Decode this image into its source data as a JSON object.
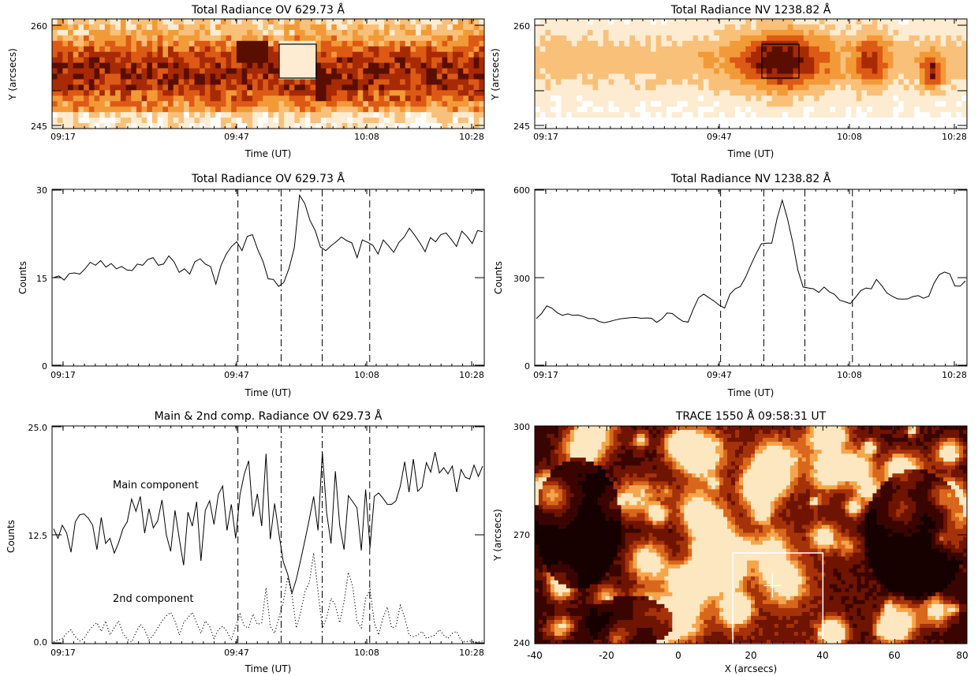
{
  "chart_data": [
    {
      "id": "p1",
      "type": "heatmap",
      "title": "Total Radiance OV 629.73 Å",
      "xlabel": "Time (UT)",
      "ylabel": "Y (arcsecs)",
      "x_ticks": [
        "09:17",
        "09:47",
        "10:08",
        "10:28"
      ],
      "y_ticks": [
        "245",
        "260"
      ],
      "colormap": [
        "#ffffff",
        "#fdecd2",
        "#f9c079",
        "#f29a37",
        "#dd5a15",
        "#a72a05",
        "#5a0e00"
      ],
      "box_label": ""
    },
    {
      "id": "p2",
      "type": "heatmap",
      "title": "Total Radiance NV 1238.82 Å",
      "xlabel": "Time (UT)",
      "ylabel": "Y (arcsecs)",
      "x_ticks": [
        "09:17",
        "09:47",
        "10:08",
        "10:28"
      ],
      "y_ticks": [
        "245",
        "260"
      ],
      "colormap": [
        "#ffffff",
        "#fdecd2",
        "#f9c079",
        "#f29a37",
        "#dd5a15",
        "#a72a05",
        "#5a0e00"
      ]
    },
    {
      "id": "p3",
      "type": "line",
      "title": "Total Radiance OV 629.73 Å",
      "xlabel": "Time (UT)",
      "ylabel": "Counts",
      "x_ticks": [
        "09:17",
        "09:47",
        "10:08",
        "10:28"
      ],
      "y_ticks": [
        "0",
        "15",
        "30"
      ],
      "ylim": [
        0,
        30
      ],
      "x_range": [
        0,
        71
      ],
      "vlines": [
        {
          "x": 0.43,
          "style": "dash"
        },
        {
          "x": 0.53,
          "style": "dashdot"
        },
        {
          "x": 0.625,
          "style": "dashdot"
        },
        {
          "x": 0.735,
          "style": "dash"
        }
      ],
      "series": [
        {
          "values": [
            15.0,
            15.3,
            14.6,
            15.7,
            15.8,
            15.6,
            16.5,
            17.6,
            17.1,
            17.9,
            16.8,
            17.4,
            16.5,
            16.9,
            16.3,
            16.2,
            17.3,
            17.1,
            18.1,
            18.4,
            17.1,
            17.3,
            18.7,
            17.7,
            15.9,
            16.5,
            15.6,
            17.7,
            18.2,
            17.3,
            16.9,
            13.9,
            17.1,
            19.0,
            20.3,
            21.1,
            19.6,
            22.0,
            22.3,
            19.8,
            17.8,
            14.8,
            14.7,
            13.5,
            14.2,
            16.6,
            20.1,
            29.0,
            27.6,
            24.7,
            23.0,
            20.2,
            19.6,
            20.4,
            21.1,
            21.9,
            21.3,
            20.9,
            18.4,
            21.4,
            21.0,
            20.5,
            19.0,
            21.4,
            20.4,
            19.3,
            21.0,
            21.9,
            23.4,
            22.2,
            20.9,
            19.4,
            21.8,
            21.1,
            22.3,
            22.6,
            21.5,
            20.3,
            22.9,
            22.0,
            20.8,
            23.0,
            22.8
          ]
        }
      ]
    },
    {
      "id": "p4",
      "type": "line",
      "title": "Total Radiance NV 1238.82 Å",
      "xlabel": "Time (UT)",
      "ylabel": "Counts",
      "x_ticks": [
        "09:17",
        "09:47",
        "10:08",
        "10:28"
      ],
      "y_ticks": [
        "0",
        "300",
        "600"
      ],
      "ylim": [
        0,
        600
      ],
      "vlines": [
        {
          "x": 0.43,
          "style": "dash"
        },
        {
          "x": 0.53,
          "style": "dashdot"
        },
        {
          "x": 0.625,
          "style": "dashdot"
        },
        {
          "x": 0.735,
          "style": "dash"
        }
      ],
      "series": [
        {
          "values": [
            161,
            178,
            204,
            196,
            181,
            172,
            177,
            172,
            173,
            168,
            161,
            161,
            151,
            147,
            151,
            156,
            160,
            162,
            164,
            165,
            162,
            163,
            162,
            148,
            160,
            180,
            178,
            164,
            152,
            149,
            193,
            232,
            244,
            232,
            220,
            206,
            197,
            244,
            262,
            270,
            302,
            343,
            381,
            415,
            417,
            417,
            500,
            563,
            500,
            420,
            325,
            268,
            265,
            262,
            250,
            268,
            252,
            243,
            223,
            218,
            212,
            233,
            256,
            265,
            262,
            294,
            273,
            248,
            237,
            228,
            227,
            228,
            236,
            239,
            230,
            237,
            281,
            310,
            319,
            313,
            272,
            271,
            289
          ]
        }
      ]
    },
    {
      "id": "p5",
      "type": "line",
      "title": "Main & 2nd comp. Radiance OV 629.73 Å",
      "xlabel": "Time (UT)",
      "ylabel": "Counts",
      "x_ticks": [
        "09:17",
        "09:47",
        "10:08",
        "10:28"
      ],
      "y_ticks": [
        "0.0",
        "12.5",
        "25.0"
      ],
      "ylim": [
        0,
        25
      ],
      "vlines": [
        {
          "x": 0.43,
          "style": "dash"
        },
        {
          "x": 0.53,
          "style": "dashdot"
        },
        {
          "x": 0.625,
          "style": "dashdot"
        },
        {
          "x": 0.735,
          "style": "dash"
        }
      ],
      "annotations": [
        "Main component",
        "2nd component"
      ],
      "series": [
        {
          "style": "solid",
          "values": [
            13.2,
            12.1,
            13.6,
            12.7,
            10.5,
            14.0,
            14.8,
            14.9,
            14.4,
            13.6,
            10.8,
            14.5,
            11.5,
            12.1,
            10.4,
            11.6,
            13.2,
            14.0,
            16.6,
            15.2,
            16.9,
            12.7,
            15.5,
            13.3,
            14.1,
            16.5,
            12.5,
            10.6,
            15.3,
            12.0,
            9.0,
            15.1,
            13.5,
            16.3,
            9.5,
            15.3,
            16.4,
            13.7,
            17.1,
            18.1,
            13.0,
            16.0,
            12.1,
            17.1,
            19.5,
            21.0,
            14.6,
            17.2,
            13.5,
            21.8,
            12.0,
            16.1,
            12.6,
            9.4,
            8.0,
            5.8,
            7.4,
            9.6,
            11.9,
            14.3,
            16.9,
            13.0,
            22.0,
            15.0,
            11.5,
            19.8,
            13.6,
            10.8,
            17.0,
            16.3,
            15.6,
            10.7,
            17.7,
            11.0,
            16.9,
            17.3,
            16.7,
            16.0,
            16.0,
            16.4,
            18.1,
            20.9,
            17.4,
            21.2,
            17.5,
            18.0,
            20.8,
            19.7,
            22.0,
            19.6,
            20.2,
            19.5,
            20.4,
            17.4,
            20.0,
            19.1,
            18.9,
            20.5,
            19.2,
            20.4
          ]
        },
        {
          "style": "dotted",
          "values": [
            0.2,
            0.4,
            0.6,
            1.2,
            1.6,
            0.8,
            0.3,
            0.6,
            1.4,
            2.0,
            2.4,
            1.4,
            2.6,
            1.0,
            1.8,
            2.6,
            1.2,
            0.5,
            0.2,
            1.3,
            2.2,
            1.6,
            0.4,
            1.0,
            1.8,
            2.6,
            3.2,
            3.6,
            2.6,
            1.0,
            2.4,
            3.0,
            3.6,
            2.4,
            1.2,
            2.6,
            2.0,
            0.6,
            1.6,
            2.0,
            1.4,
            0.4,
            2.0,
            3.4,
            2.0,
            1.8,
            3.4,
            2.2,
            2.4,
            6.4,
            2.0,
            1.2,
            3.0,
            4.8,
            7.6,
            5.6,
            1.8,
            3.6,
            6.0,
            7.0,
            10.4,
            6.0,
            1.8,
            3.0,
            5.2,
            4.4,
            2.4,
            4.8,
            8.2,
            6.6,
            2.6,
            1.8,
            5.2,
            6.2,
            2.4,
            1.0,
            3.0,
            4.2,
            1.8,
            2.0,
            4.4,
            3.0,
            1.0,
            0.8,
            1.0,
            1.4,
            0.6,
            0.8,
            1.0,
            1.6,
            1.0,
            0.6,
            1.2,
            1.4,
            0.4,
            0.2,
            0.3,
            0.2,
            0.2,
            0.3
          ]
        }
      ]
    },
    {
      "id": "p6",
      "type": "heatmap",
      "title": "TRACE 1550 Å 09:58:31 UT",
      "xlabel": "X (arcsecs)",
      "ylabel": "Y (arcsecs)",
      "x_ticks": [
        "-40",
        "-20",
        "0",
        "20",
        "40",
        "60",
        "80"
      ],
      "y_ticks": [
        "240",
        "270",
        "300"
      ],
      "xlim": [
        -40,
        80
      ],
      "ylim": [
        240,
        300
      ],
      "box": {
        "x0": 15,
        "x1": 40,
        "y0": 240,
        "y1": 265
      },
      "marker": {
        "x": 26,
        "y": 256
      },
      "colormap": [
        "#160100",
        "#3a0500",
        "#6e1400",
        "#a53208",
        "#d8671c",
        "#f5a54b",
        "#fde7c0"
      ]
    }
  ]
}
